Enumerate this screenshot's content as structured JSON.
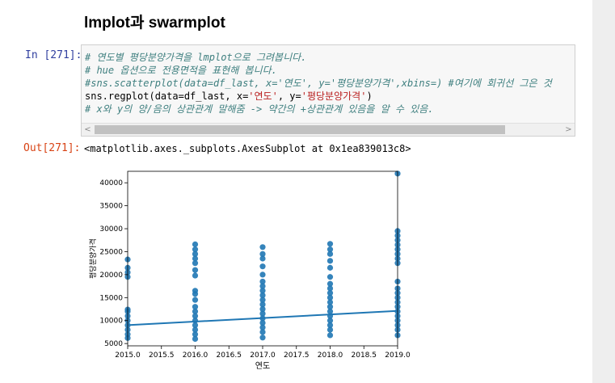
{
  "heading": "lmplot과 swarmplot",
  "input_prompt": "In [271]:",
  "output_prompt": "Out[271]:",
  "code": {
    "line1": "# 연도별 평당분양가격을 lmplot으로 그려봅니다.",
    "line2": "# hue 옵션으로 전용면적을 표현해 봅니다.",
    "line3": "#sns.scatterplot(data=df_last, x='연도', y='평당분양가격',xbins=) #여기에 회귀선 그은 것",
    "line4_a": "sns.regplot(data=df_last, x=",
    "line4_b": "'연도'",
    "line4_c": ", y=",
    "line4_d": "'평당분양가격'",
    "line4_e": ")",
    "line5": "# x와 y의 양/음의 상관관계 말해줌 -> 약간의 +상관관계 있음을 알 수 있음."
  },
  "output_text": "<matplotlib.axes._subplots.AxesSubplot at 0x1ea839013c8>",
  "scrollbar": {
    "left_arrow": "<",
    "right_arrow": ">"
  },
  "chart_data": {
    "type": "scatter",
    "xlabel": "연도",
    "ylabel": "평당분양가격",
    "xlim": [
      2015.0,
      2019.0
    ],
    "ylim": [
      4500,
      42500
    ],
    "xticks": [
      "2015.0",
      "2015.5",
      "2016.0",
      "2016.5",
      "2017.0",
      "2017.5",
      "2018.0",
      "2018.5",
      "2019.0"
    ],
    "yticks": [
      "5000",
      "10000",
      "15000",
      "20000",
      "25000",
      "30000",
      "35000",
      "40000"
    ],
    "colors": {
      "points": "#1f77b4",
      "regression": "#1f77b4"
    },
    "groups": [
      {
        "x": 2015,
        "values": [
          6200,
          7000,
          8000,
          9000,
          10000,
          11000,
          12000,
          12400,
          19500,
          20500,
          21500,
          23300
        ]
      },
      {
        "x": 2016,
        "values": [
          6000,
          7000,
          8000,
          9000,
          10000,
          11000,
          12000,
          13000,
          14500,
          15800,
          16500,
          19800,
          21000,
          22500,
          23500,
          24500,
          25500,
          26600
        ]
      },
      {
        "x": 2017,
        "values": [
          6300,
          7500,
          8500,
          9500,
          10500,
          11500,
          12500,
          13500,
          14500,
          15500,
          16500,
          17500,
          18500,
          20000,
          21800,
          23500,
          24500,
          26000
        ]
      },
      {
        "x": 2018,
        "values": [
          6800,
          8000,
          9000,
          10000,
          11000,
          12000,
          13000,
          14000,
          15000,
          16000,
          17000,
          18000,
          19500,
          21500,
          23000,
          24500,
          25500,
          26700
        ]
      },
      {
        "x": 2019,
        "values": [
          6800,
          8000,
          9000,
          10000,
          11000,
          12000,
          13000,
          14000,
          15000,
          16000,
          17000,
          18500,
          22500,
          23500,
          24500,
          25500,
          26500,
          27500,
          28500,
          29500,
          42000
        ]
      }
    ],
    "regression": {
      "x": [
        2015,
        2019
      ],
      "y": [
        9000,
        12100
      ]
    }
  }
}
